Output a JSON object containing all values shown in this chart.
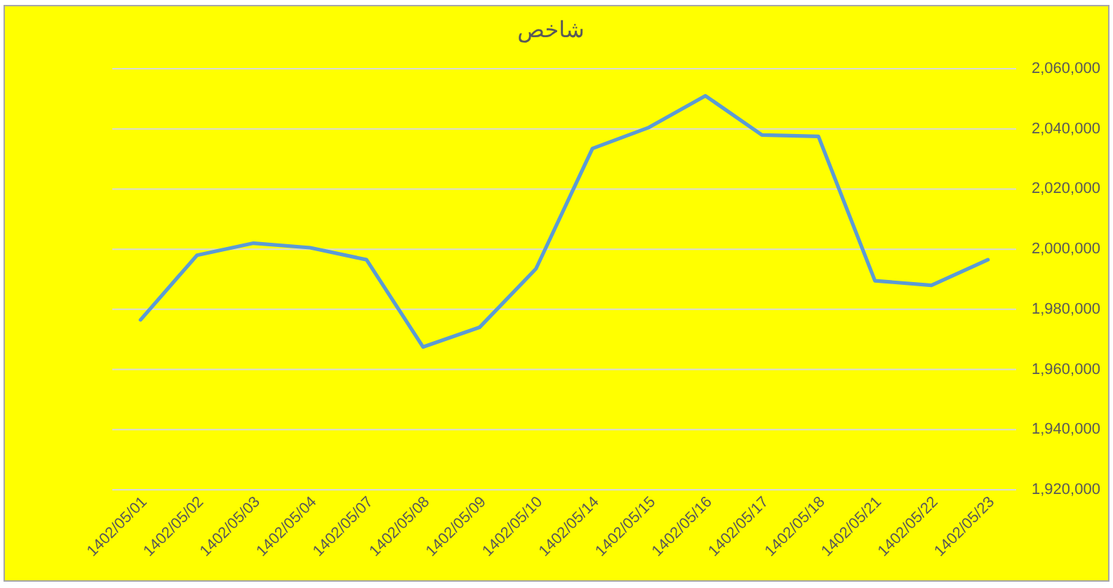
{
  "chart_data": {
    "type": "line",
    "title": "شاخص",
    "categories": [
      "1402/05/01",
      "1402/05/02",
      "1402/05/03",
      "1402/05/04",
      "1402/05/07",
      "1402/05/08",
      "1402/05/09",
      "1402/05/10",
      "1402/05/14",
      "1402/05/15",
      "1402/05/16",
      "1402/05/17",
      "1402/05/18",
      "1402/05/21",
      "1402/05/22",
      "1402/05/23"
    ],
    "series": [
      {
        "color": "#5b9bd5",
        "values": [
          1976500,
          1998000,
          2002000,
          2000500,
          1996500,
          1967500,
          1974000,
          1993500,
          2033500,
          2040500,
          2051000,
          2038000,
          2037500,
          1989500,
          1988000,
          1996500
        ]
      }
    ],
    "ylim": [
      1920000,
      2060000
    ],
    "yticks": [
      {
        "value": 1920000,
        "label": "1,920,000"
      },
      {
        "value": 1940000,
        "label": "1,940,000"
      },
      {
        "value": 1960000,
        "label": "1,960,000"
      },
      {
        "value": 1980000,
        "label": "1,980,000"
      },
      {
        "value": 2000000,
        "label": "2,000,000"
      },
      {
        "value": 2020000,
        "label": "2,020,000"
      },
      {
        "value": 2040000,
        "label": "2,040,000"
      },
      {
        "value": 2060000,
        "label": "2,060,000"
      }
    ],
    "grid": "y"
  }
}
